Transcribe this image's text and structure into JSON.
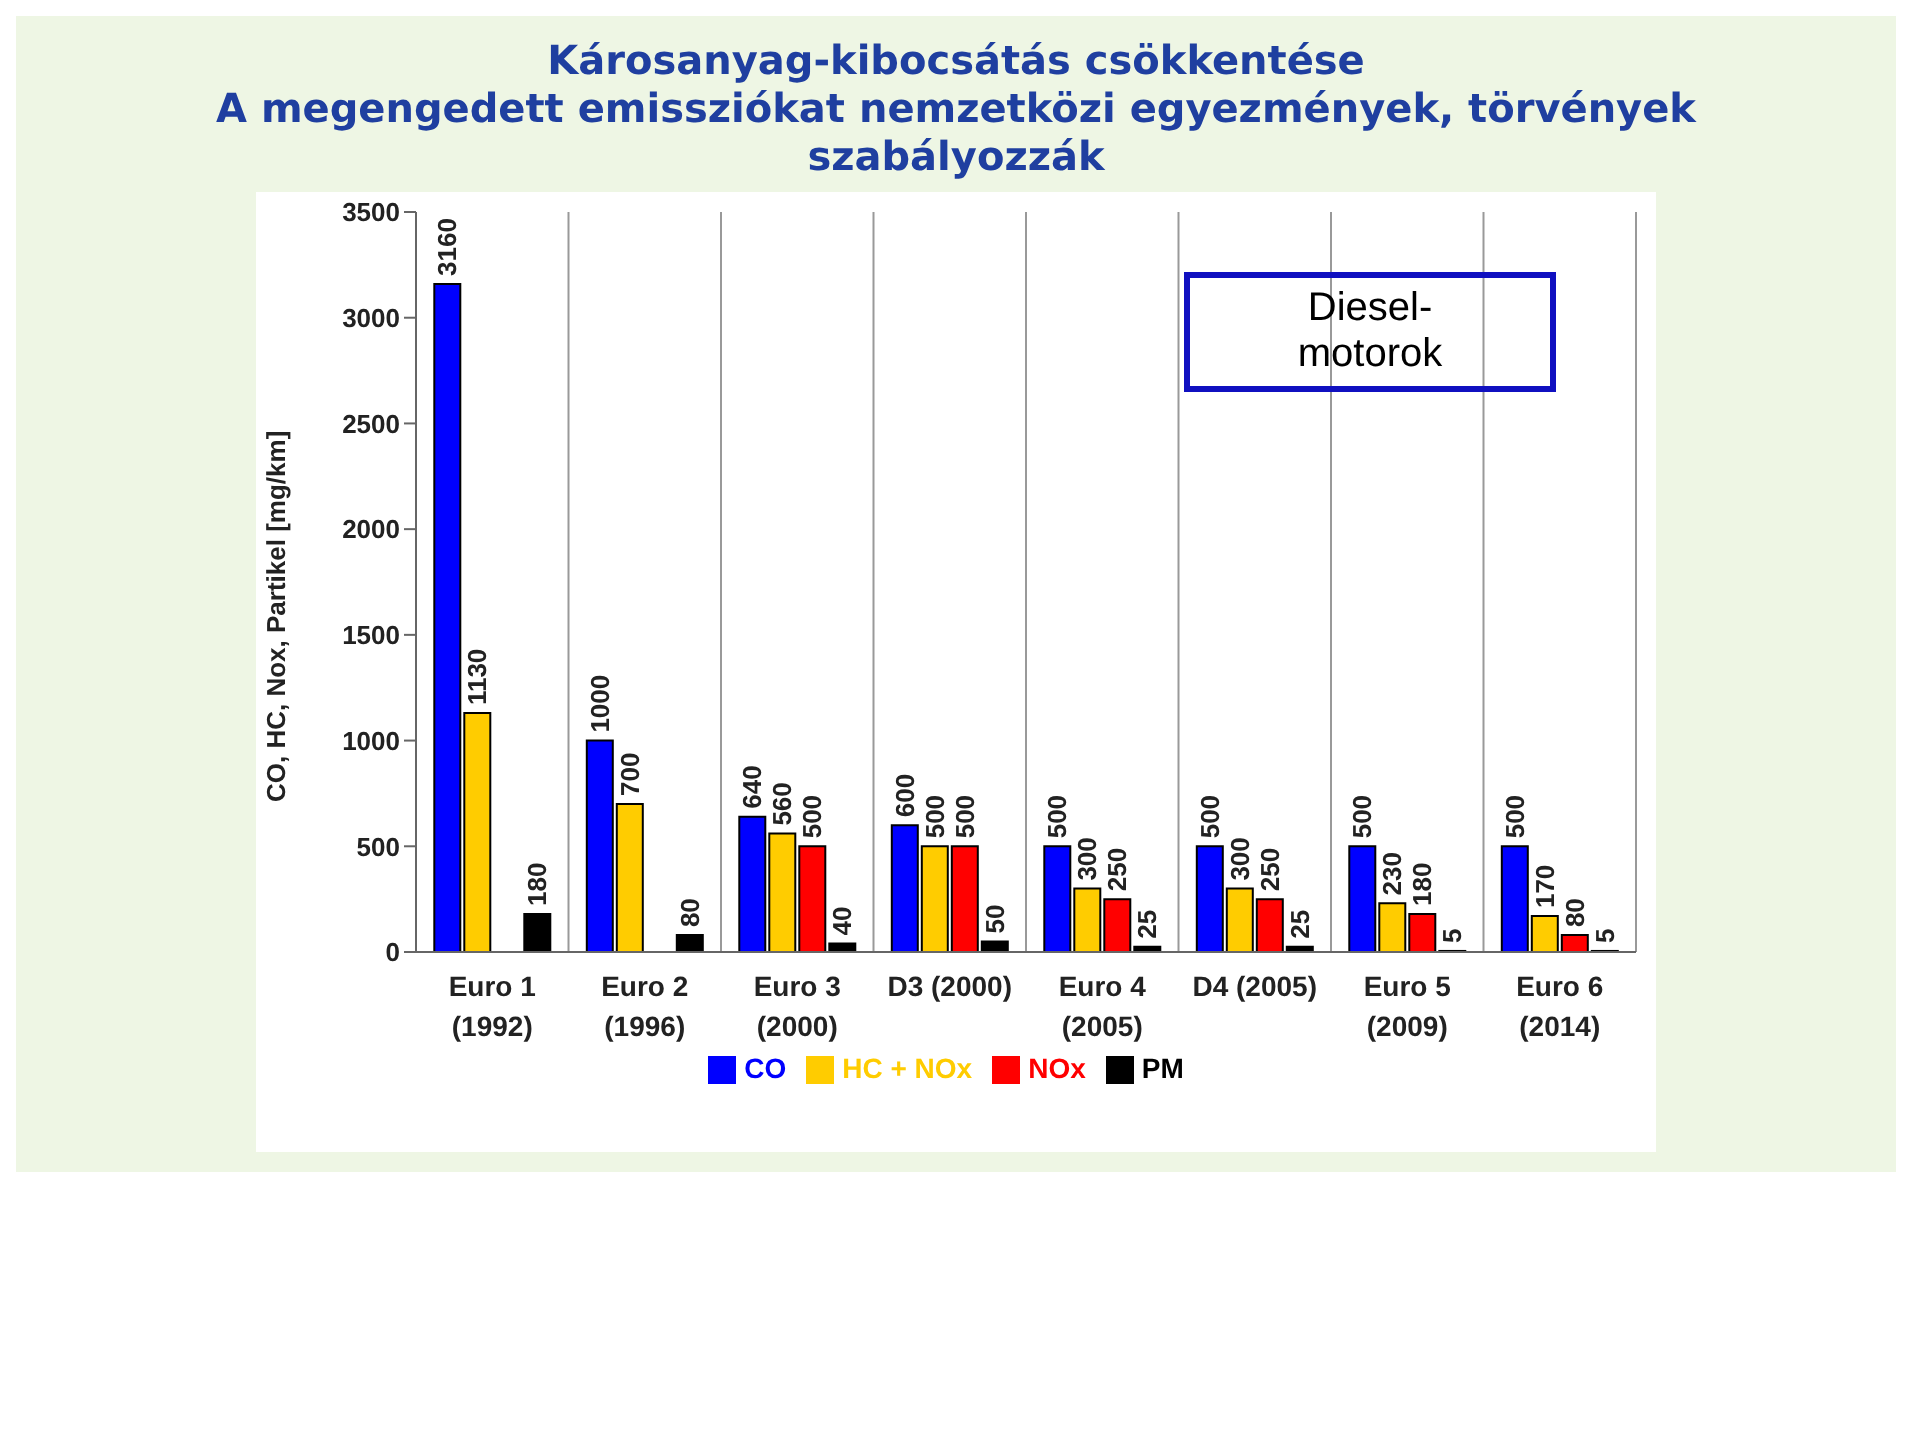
{
  "chart_data": {
    "type": "bar",
    "title": "Károsanyag-kibocsátás csökkentése",
    "subtitle": "A megengedett emissziókat nemzetközi egyezmények, törvények szabályozzák",
    "ylabel": "CO, HC, Nox, Partikel [mg/km]",
    "categories": [
      "Euro 1\n(1992)",
      "Euro 2\n(1996)",
      "Euro 3\n(2000)",
      "D3 (2000)",
      "Euro 4\n(2005)",
      "D4 (2005)",
      "Euro 5\n(2009)",
      "Euro 6\n(2014)"
    ],
    "series": [
      {
        "name": "CO",
        "color": "#0000ff",
        "values": [
          3160,
          1000,
          640,
          600,
          500,
          500,
          500,
          500
        ]
      },
      {
        "name": "HC + NOx",
        "color": "#ffcc00",
        "values": [
          1130,
          700,
          560,
          500,
          300,
          300,
          230,
          170
        ]
      },
      {
        "name": "NOx",
        "color": "#ff0000",
        "values": [
          null,
          null,
          500,
          500,
          250,
          250,
          180,
          80
        ]
      },
      {
        "name": "PM",
        "color": "#000000",
        "values": [
          180,
          80,
          40,
          50,
          25,
          25,
          5,
          5
        ]
      }
    ],
    "ylim": [
      0,
      3500
    ],
    "yticks": [
      0,
      500,
      1000,
      1500,
      2000,
      2500,
      3000,
      3500
    ],
    "grid": "x",
    "legend": "bottom",
    "data_labels": true,
    "annotations": [
      "Diesel-\nmotorok"
    ]
  }
}
